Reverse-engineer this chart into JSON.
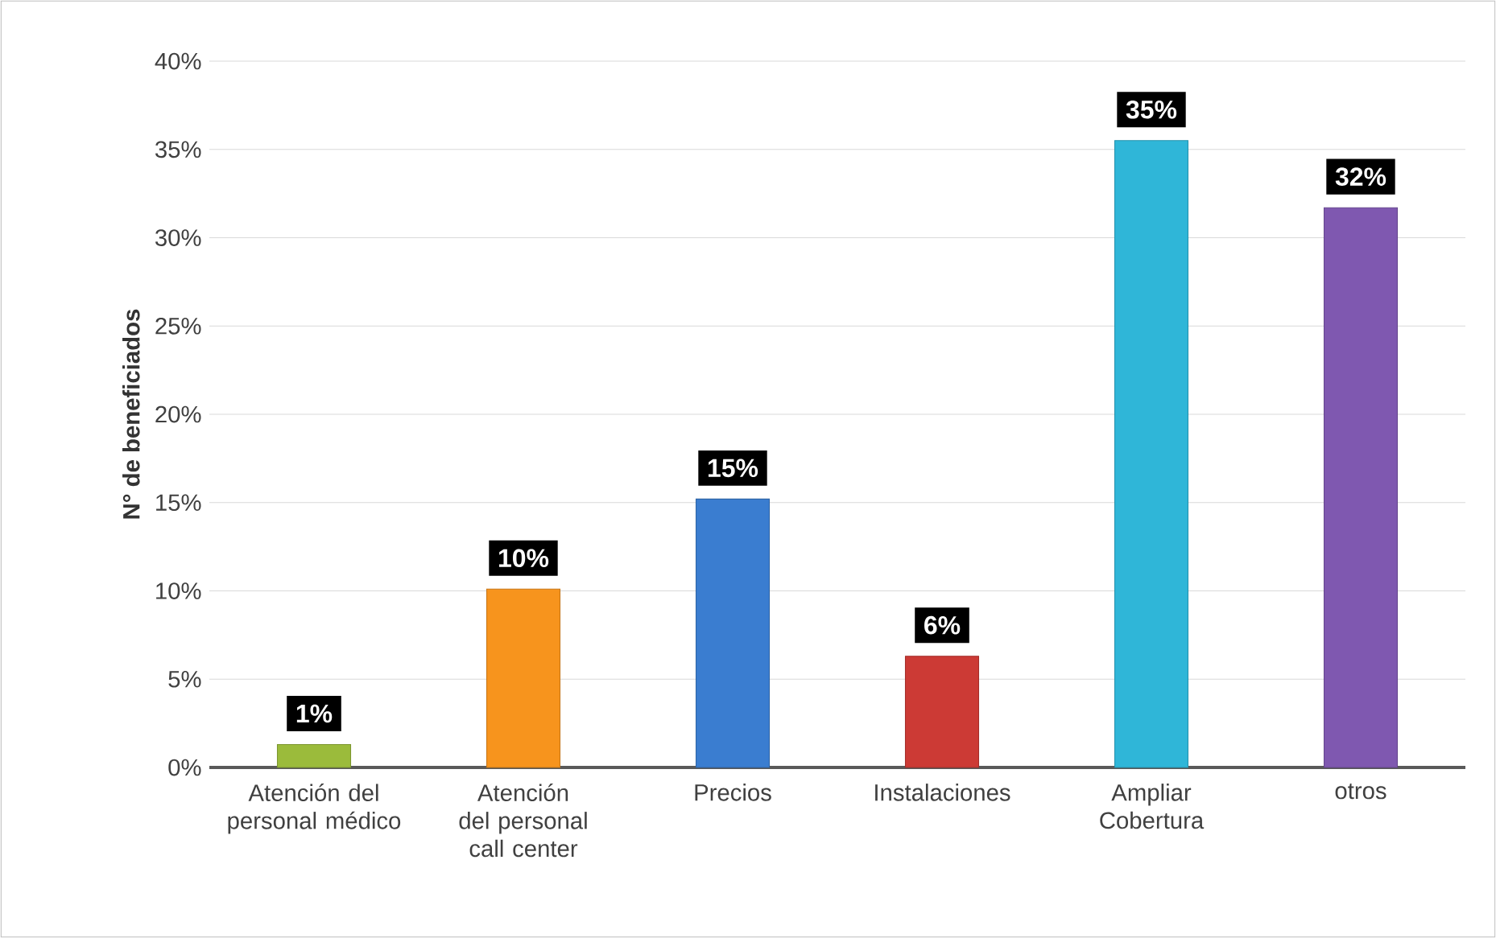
{
  "chart_data": {
    "type": "bar",
    "ylabel": "N° de beneficiados",
    "categories": [
      "Atención del personal médico",
      "Atención del personal call center",
      "Precios",
      "Instalaciones",
      "Ampliar Cobertura",
      "otros"
    ],
    "values": [
      1.3,
      10.1,
      15.2,
      6.3,
      35.5,
      31.7
    ],
    "value_labels": [
      "1%",
      "10%",
      "15%",
      "6%",
      "35%",
      "32%"
    ],
    "colors": [
      "#9bbb3b",
      "#f7941d",
      "#3a7dd0",
      "#cc3a35",
      "#2fb6d8",
      "#7f58b0"
    ],
    "ylim": [
      0,
      40
    ],
    "yticks": [
      {
        "value": 0,
        "label": "0%"
      },
      {
        "value": 5,
        "label": "5%"
      },
      {
        "value": 10,
        "label": "10%"
      },
      {
        "value": 15,
        "label": "15%"
      },
      {
        "value": 20,
        "label": "20%"
      },
      {
        "value": 25,
        "label": "25%"
      },
      {
        "value": 30,
        "label": "30%"
      },
      {
        "value": 35,
        "label": "35%"
      },
      {
        "value": 40,
        "label": "40%"
      }
    ],
    "grid": "y"
  }
}
